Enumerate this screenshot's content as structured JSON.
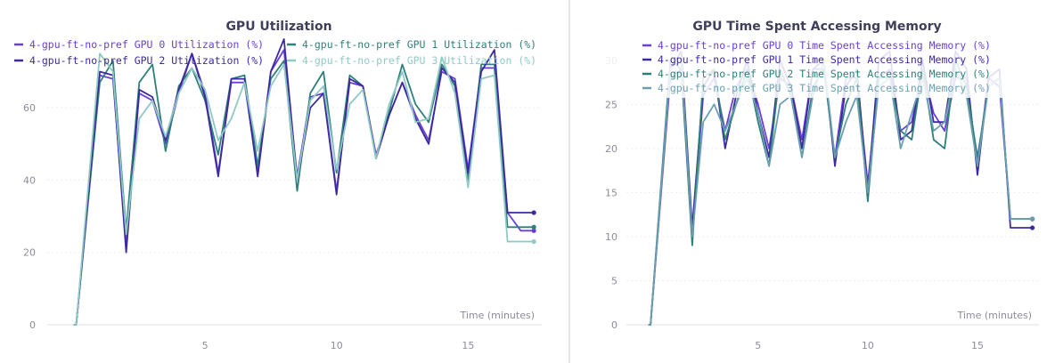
{
  "chart_data": [
    {
      "type": "line",
      "title": "GPU Utilization",
      "xlabel": "Time (minutes)",
      "ylabel": "",
      "xlim": [
        -1,
        17.8
      ],
      "ylim": [
        0,
        78
      ],
      "xticks": [
        5,
        10,
        15
      ],
      "yticks": [
        0,
        20,
        40,
        60
      ],
      "legend": "top",
      "series": [
        {
          "name": "4-gpu-ft-no-pref GPU 0 Utilization (%)",
          "color": "#6a3fd6",
          "x": [
            0,
            0.1,
            1,
            1.5,
            2,
            2.5,
            3,
            3.5,
            4,
            4.5,
            5,
            5.5,
            6,
            6.5,
            7,
            7.5,
            8,
            8.5,
            9,
            9.5,
            10,
            10.5,
            11,
            11.5,
            12,
            12.5,
            13,
            13.5,
            14,
            14.5,
            15,
            15.5,
            16,
            16.5,
            17,
            17.5
          ],
          "y": [
            0,
            0,
            69,
            68,
            22,
            64,
            62,
            50,
            64,
            75,
            64,
            42,
            67,
            67,
            42,
            70,
            76,
            41,
            63,
            64,
            37,
            67,
            66,
            47,
            58,
            67,
            58,
            51,
            70,
            68,
            43,
            71,
            71,
            31,
            26,
            26
          ]
        },
        {
          "name": "4-gpu-ft-no-pref GPU 1 Utilization (%)",
          "color": "#2f7f7a",
          "x": [
            0,
            0.1,
            1,
            1.5,
            2,
            2.5,
            3,
            3.5,
            4,
            4.5,
            5,
            5.5,
            6,
            6.5,
            7,
            7.5,
            8,
            8.5,
            9,
            9.5,
            10,
            10.5,
            11,
            11.5,
            12,
            12.5,
            13,
            13.5,
            14,
            14.5,
            15,
            15.5,
            16,
            16.5,
            17,
            17.5
          ],
          "y": [
            0,
            0,
            67,
            73,
            26,
            67,
            72,
            48,
            66,
            71,
            62,
            47,
            68,
            69,
            44,
            68,
            73,
            37,
            64,
            70,
            42,
            69,
            66,
            46,
            59,
            72,
            61,
            56,
            72,
            66,
            40,
            72,
            72,
            27,
            27,
            27
          ]
        },
        {
          "name": "4-gpu-ft-no-pref GPU 2 Utilization (%)",
          "color": "#3d2aa0",
          "x": [
            0,
            0.1,
            1,
            1.5,
            2,
            2.5,
            3,
            3.5,
            4,
            4.5,
            5,
            5.5,
            6,
            6.5,
            7,
            7.5,
            8,
            8.5,
            9,
            9.5,
            10,
            10.5,
            11,
            11.5,
            12,
            12.5,
            13,
            13.5,
            14,
            14.5,
            15,
            15.5,
            16,
            16.5,
            17,
            17.5
          ],
          "y": [
            0,
            0,
            70,
            69,
            20,
            65,
            63,
            51,
            65,
            75,
            63,
            41,
            68,
            68,
            41,
            70,
            79,
            40,
            60,
            64,
            36,
            68,
            66,
            46,
            58,
            67,
            57,
            50,
            71,
            67,
            42,
            70,
            76,
            31,
            31,
            31
          ]
        },
        {
          "name": "4-gpu-ft-no-pref GPU 3 Utilization (%)",
          "color": "#8fc9c4",
          "x": [
            0,
            0.1,
            1,
            1.5,
            2,
            2.5,
            3,
            3.5,
            4,
            4.5,
            5,
            5.5,
            6,
            6.5,
            7,
            7.5,
            8,
            8.5,
            9,
            9.5,
            10,
            10.5,
            11,
            11.5,
            12,
            12.5,
            13,
            13.5,
            14,
            14.5,
            15,
            15.5,
            16,
            16.5,
            17,
            17.5
          ],
          "y": [
            0,
            0,
            75,
            70,
            25,
            57,
            62,
            52,
            64,
            71,
            65,
            51,
            57,
            67,
            48,
            66,
            72,
            40,
            62,
            66,
            43,
            61,
            65,
            46,
            61,
            70,
            56,
            57,
            74,
            64,
            38,
            68,
            69,
            23,
            23,
            23
          ]
        }
      ]
    },
    {
      "type": "line",
      "title": "GPU Time Spent Accessing Memory",
      "xlabel": "Time (minutes)",
      "ylabel": "",
      "xlim": [
        -1,
        17.8
      ],
      "ylim": [
        0,
        32
      ],
      "xticks": [
        5,
        10,
        15
      ],
      "yticks": [
        0,
        5,
        10,
        15,
        20,
        25,
        30
      ],
      "legend": "top",
      "series": [
        {
          "name": "4-gpu-ft-no-pref GPU 0 Time Spent Accessing Memory (%)",
          "color": "#6a3fd6",
          "x": [
            0,
            0.1,
            1,
            1.5,
            2,
            2.5,
            3,
            3.5,
            4,
            4.5,
            5,
            5.5,
            6,
            6.5,
            7,
            7.5,
            8,
            8.5,
            9,
            9.5,
            10,
            10.5,
            11,
            11.5,
            12,
            12.5,
            13,
            13.5,
            14,
            14.5,
            15,
            15.5,
            16,
            16.5,
            17,
            17.5
          ],
          "y": [
            0,
            0,
            28,
            29,
            10,
            26,
            28,
            22,
            27,
            29,
            25,
            20,
            28,
            27,
            21,
            29,
            29,
            19,
            28,
            28,
            16,
            28,
            29,
            22,
            23,
            29,
            24,
            22,
            28,
            28,
            18,
            28,
            27,
            12,
            12,
            12
          ]
        },
        {
          "name": "4-gpu-ft-no-pref GPU 1 Time Spent Accessing Memory (%)",
          "color": "#3d2aa0",
          "x": [
            0,
            0.1,
            1,
            1.5,
            2,
            2.5,
            3,
            3.5,
            4,
            4.5,
            5,
            5.5,
            6,
            6.5,
            7,
            7.5,
            8,
            8.5,
            9,
            9.5,
            10,
            10.5,
            11,
            11.5,
            12,
            12.5,
            13,
            13.5,
            14,
            14.5,
            15,
            15.5,
            16,
            16.5,
            17,
            17.5
          ],
          "y": [
            0,
            0,
            29,
            31,
            11,
            27,
            29,
            20,
            26,
            30,
            24,
            19,
            30,
            27,
            20,
            29,
            30,
            18,
            27,
            29,
            15,
            30,
            31,
            21,
            22,
            30,
            23,
            23,
            31,
            29,
            17,
            28,
            29,
            11,
            11,
            11
          ]
        },
        {
          "name": "4-gpu-ft-no-pref GPU 2 Time Spent Accessing Memory (%)",
          "color": "#2f7f7a",
          "x": [
            0,
            0.1,
            1,
            1.5,
            2,
            2.5,
            3,
            3.5,
            4,
            4.5,
            5,
            5.5,
            6,
            6.5,
            7,
            7.5,
            8,
            8.5,
            9,
            9.5,
            10,
            10.5,
            11,
            11.5,
            12,
            12.5,
            13,
            13.5,
            14,
            14.5,
            15,
            15.5,
            16,
            16.5,
            17,
            17.5
          ],
          "y": [
            0,
            0,
            30,
            29,
            9,
            28,
            29,
            21,
            25,
            29,
            23,
            18,
            29,
            26,
            19,
            27,
            29,
            19,
            25,
            28,
            14,
            28,
            28,
            22,
            21,
            29,
            21,
            20,
            30,
            27,
            19,
            27,
            28,
            12,
            12,
            12
          ]
        },
        {
          "name": "4-gpu-ft-no-pref GPU 3 Time Spent Accessing Memory (%)",
          "color": "#6b9fb0",
          "x": [
            0,
            0.1,
            1,
            1.5,
            2,
            2.5,
            3,
            3.5,
            4,
            4.5,
            5,
            5.5,
            6,
            6.5,
            7,
            7.5,
            8,
            8.5,
            9,
            9.5,
            10,
            10.5,
            11,
            11.5,
            12,
            12.5,
            13,
            13.5,
            14,
            14.5,
            15,
            15.5,
            16,
            16.5,
            17,
            17.5
          ],
          "y": [
            0,
            0,
            29,
            30,
            10,
            23,
            25,
            22,
            25,
            28,
            24,
            18,
            25,
            26,
            19,
            26,
            30,
            19,
            23,
            26,
            15,
            27,
            28,
            20,
            24,
            28,
            22,
            23,
            29,
            26,
            18,
            27,
            28,
            12,
            12,
            12
          ]
        }
      ]
    }
  ]
}
